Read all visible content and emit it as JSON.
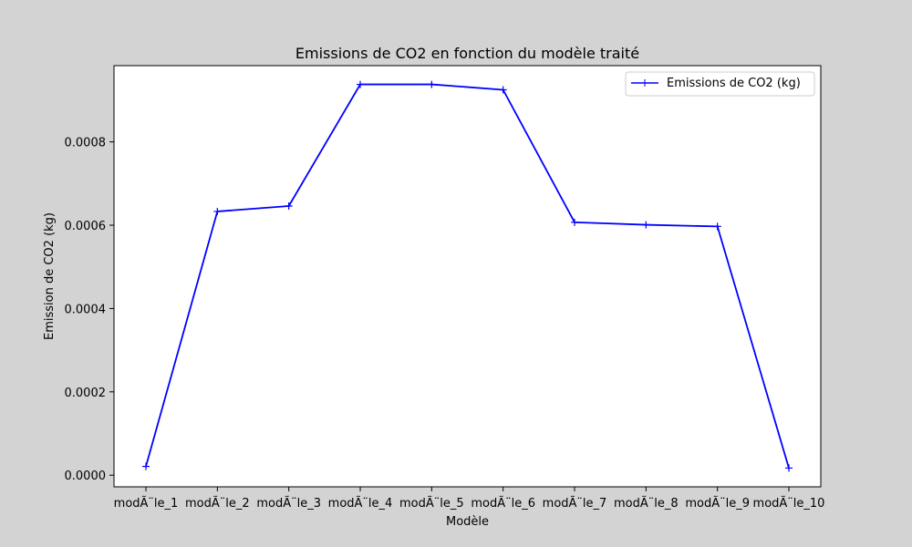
{
  "chart_data": {
    "type": "line",
    "title": "Emissions de CO2 en fonction du modèle traité",
    "xlabel": "Modèle",
    "ylabel": "Emission de CO2 (kg)",
    "categories": [
      "modÃ¨le_1",
      "modÃ¨le_2",
      "modÃ¨le_3",
      "modÃ¨le_4",
      "modÃ¨le_5",
      "modÃ¨le_6",
      "modÃ¨le_7",
      "modÃ¨le_8",
      "modÃ¨le_9",
      "modÃ¨le_10"
    ],
    "series": [
      {
        "name": "Emissions de CO2 (kg)",
        "color": "#0000ff",
        "marker": "+",
        "values": [
          2.1e-05,
          0.000633,
          0.000646,
          0.000938,
          0.000938,
          0.000925,
          0.000607,
          0.000601,
          0.000597,
          1.7e-05
        ]
      }
    ],
    "ylim": [
      -2.8e-05,
      0.000983
    ],
    "yticks": [
      0.0,
      0.0002,
      0.0004,
      0.0006,
      0.0008
    ],
    "ytick_labels": [
      "0.0000",
      "0.0002",
      "0.0004",
      "0.0006",
      "0.0008"
    ],
    "grid": false,
    "legend_position": "top-right",
    "background_color": "#d3d3d3"
  }
}
